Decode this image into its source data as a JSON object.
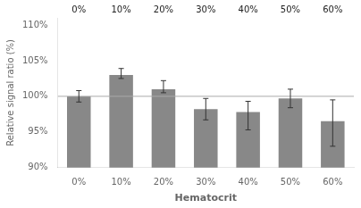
{
  "chart_data": {
    "type": "bar",
    "categories": [
      "0%",
      "10%",
      "20%",
      "30%",
      "40%",
      "50%",
      "60%"
    ],
    "values": [
      100.0,
      103.0,
      101.0,
      98.2,
      97.8,
      99.7,
      96.5
    ],
    "error_upper": [
      0.8,
      0.9,
      1.2,
      1.5,
      1.5,
      1.3,
      3.0
    ],
    "error_lower": [
      0.8,
      0.5,
      0.5,
      1.5,
      2.5,
      1.3,
      3.5
    ],
    "color": "#888888",
    "hline": {
      "y": 100,
      "color": "#aaaaaa"
    },
    "x_label": "Hematocrit",
    "y_label": "Relative signal ratio (%)",
    "ylim": [
      90,
      111
    ],
    "yticks": [
      {
        "value": 90,
        "label": "90%"
      },
      {
        "value": 95,
        "label": "95%"
      },
      {
        "value": 100,
        "label": "100%"
      },
      {
        "value": 105,
        "label": "105%"
      },
      {
        "value": 110,
        "label": "110%"
      }
    ],
    "annotations": [
      {
        "text": "0%",
        "x": "0%"
      },
      {
        "text": "10%",
        "x": "10%"
      },
      {
        "text": "20%",
        "x": "20%"
      },
      {
        "text": "30%",
        "x": "30%"
      },
      {
        "text": "40%",
        "x": "40%"
      },
      {
        "text": "50%",
        "x": "50%"
      },
      {
        "text": "60%",
        "x": "60%"
      }
    ],
    "grid": false
  }
}
